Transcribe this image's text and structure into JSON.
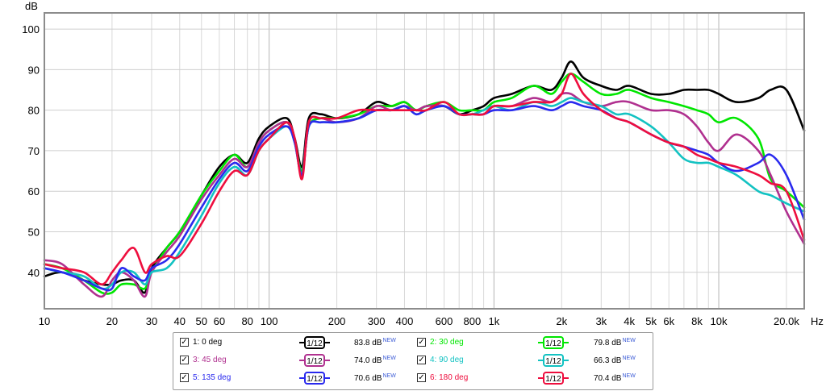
{
  "chart_data": {
    "type": "line",
    "title": "",
    "xlabel": "Hz",
    "ylabel": "dB",
    "x_scale": "log",
    "xlim": [
      10,
      24000
    ],
    "ylim": [
      31,
      104
    ],
    "grid": true,
    "x_ticks": [
      "10",
      "20",
      "30",
      "40",
      "50",
      "60",
      "80",
      "100",
      "200",
      "300",
      "400",
      "600",
      "800",
      "1k",
      "2k",
      "3k",
      "4k",
      "5k",
      "6k",
      "8k",
      "10k",
      "20.0k"
    ],
    "x_tick_values": [
      10,
      20,
      30,
      40,
      50,
      60,
      80,
      100,
      200,
      300,
      400,
      600,
      800,
      1000,
      2000,
      3000,
      4000,
      5000,
      6000,
      8000,
      10000,
      20000
    ],
    "y_ticks": [
      40,
      50,
      60,
      70,
      80,
      90,
      100
    ],
    "series": [
      {
        "name": "1: 0 deg",
        "color": "#000000",
        "smoothing": "1/12",
        "avg": "83.8 dB",
        "x": [
          10,
          12,
          15,
          18,
          20,
          22,
          25,
          28,
          30,
          35,
          40,
          50,
          60,
          70,
          80,
          90,
          100,
          120,
          130,
          140,
          150,
          170,
          200,
          250,
          300,
          350,
          400,
          450,
          500,
          600,
          700,
          800,
          900,
          1000,
          1200,
          1500,
          1800,
          2000,
          2200,
          2500,
          3000,
          3500,
          4000,
          5000,
          6000,
          7000,
          8000,
          9000,
          10000,
          12000,
          15000,
          17000,
          20000,
          24000
        ],
        "y": [
          39,
          40,
          38,
          37,
          37,
          38,
          38,
          35,
          41,
          46,
          50,
          59,
          66,
          69,
          67,
          73,
          76,
          78,
          73,
          66,
          78,
          79,
          78,
          79,
          82,
          81,
          82,
          80,
          81,
          81,
          79,
          80,
          81,
          83,
          84,
          86,
          85,
          88,
          92,
          88,
          86,
          85,
          86,
          84,
          84,
          85,
          85,
          85,
          84,
          82,
          83,
          85,
          85,
          75
        ]
      },
      {
        "name": "2: 30 deg",
        "color": "#00e600",
        "smoothing": "1/12",
        "avg": "79.8 dB",
        "x": [
          10,
          12,
          15,
          18,
          20,
          22,
          25,
          28,
          30,
          35,
          40,
          50,
          60,
          70,
          80,
          90,
          100,
          120,
          130,
          140,
          150,
          170,
          200,
          250,
          300,
          350,
          400,
          450,
          500,
          600,
          700,
          800,
          900,
          1000,
          1200,
          1500,
          1800,
          2000,
          2200,
          2500,
          3000,
          3500,
          4000,
          5000,
          6000,
          7000,
          8000,
          9000,
          10000,
          12000,
          15000,
          17000,
          20000,
          24000
        ],
        "y": [
          42,
          41,
          38,
          35,
          35,
          37,
          37,
          36,
          40,
          46,
          50,
          59,
          65,
          69,
          66,
          72,
          75,
          77,
          72,
          65,
          76,
          78,
          78,
          79,
          81,
          81,
          82,
          80,
          81,
          82,
          80,
          80,
          80,
          82,
          83,
          86,
          84,
          87,
          89,
          87,
          84,
          84,
          85,
          83,
          82,
          81,
          80,
          79,
          77,
          78,
          73,
          63,
          60,
          56
        ]
      },
      {
        "name": "3: 45 deg",
        "color": "#b0308f",
        "smoothing": "1/12",
        "avg": "74.0 dB",
        "x": [
          10,
          12,
          15,
          18,
          20,
          22,
          25,
          28,
          30,
          35,
          40,
          50,
          60,
          70,
          80,
          90,
          100,
          120,
          130,
          140,
          150,
          170,
          200,
          250,
          300,
          350,
          400,
          450,
          500,
          600,
          700,
          800,
          900,
          1000,
          1200,
          1500,
          1800,
          2000,
          2200,
          2500,
          3000,
          3500,
          4000,
          5000,
          6000,
          7000,
          8000,
          9000,
          10000,
          12000,
          15000,
          17000,
          20000,
          24000
        ],
        "y": [
          43,
          42,
          37,
          34,
          38,
          40,
          38,
          34,
          40,
          45,
          49,
          58,
          64,
          68,
          66,
          72,
          75,
          77,
          72,
          64,
          77,
          78,
          77,
          78,
          81,
          80,
          81,
          80,
          81,
          81,
          79,
          79,
          79,
          81,
          81,
          83,
          82,
          84,
          84,
          82,
          81,
          82,
          82,
          80,
          80,
          79,
          76,
          72,
          70,
          74,
          70,
          64,
          55,
          47
        ]
      },
      {
        "name": "4: 90 deg",
        "color": "#12c2c2",
        "smoothing": "1/12",
        "avg": "66.3 dB",
        "x": [
          10,
          12,
          15,
          18,
          20,
          22,
          25,
          28,
          30,
          35,
          40,
          50,
          60,
          70,
          80,
          90,
          100,
          120,
          130,
          140,
          150,
          170,
          200,
          250,
          300,
          350,
          400,
          450,
          500,
          600,
          700,
          800,
          900,
          1000,
          1200,
          1500,
          1800,
          2000,
          2200,
          2500,
          3000,
          3500,
          4000,
          5000,
          6000,
          7000,
          8000,
          9000,
          10000,
          12000,
          15000,
          17000,
          20000,
          24000
        ],
        "y": [
          41,
          40,
          39,
          36,
          37,
          40,
          40,
          37,
          40,
          41,
          45,
          54,
          62,
          66,
          64,
          70,
          73,
          76,
          72,
          64,
          76,
          77,
          77,
          78,
          80,
          80,
          81,
          79,
          80,
          81,
          79,
          79,
          80,
          81,
          80,
          82,
          81,
          82,
          83,
          82,
          81,
          79,
          79,
          76,
          72,
          68,
          67,
          67,
          66,
          64,
          60,
          59,
          57,
          55
        ]
      },
      {
        "name": "5: 135 deg",
        "color": "#2a2aee",
        "smoothing": "1/12",
        "avg": "70.6 dB",
        "x": [
          10,
          12,
          15,
          18,
          20,
          22,
          25,
          28,
          30,
          35,
          40,
          50,
          60,
          70,
          80,
          90,
          100,
          120,
          130,
          140,
          150,
          170,
          200,
          250,
          300,
          350,
          400,
          450,
          500,
          600,
          700,
          800,
          900,
          1000,
          1200,
          1500,
          1800,
          2000,
          2200,
          2500,
          3000,
          3500,
          4000,
          5000,
          6000,
          7000,
          8000,
          9000,
          10000,
          12000,
          15000,
          17000,
          20000,
          24000
        ],
        "y": [
          41,
          40,
          38,
          36,
          36,
          41,
          39,
          38,
          41,
          43,
          47,
          56,
          63,
          67,
          65,
          71,
          74,
          76,
          72,
          64,
          76,
          77,
          77,
          78,
          80,
          80,
          81,
          79,
          80,
          81,
          79,
          79,
          79,
          80,
          80,
          81,
          80,
          81,
          82,
          81,
          80,
          78,
          77,
          74,
          72,
          71,
          70,
          69,
          67,
          65,
          67,
          69,
          64,
          53
        ]
      },
      {
        "name": "6: 180 deg",
        "color": "#ee0e3e",
        "smoothing": "1/12",
        "avg": "70.4 dB",
        "x": [
          10,
          12,
          15,
          18,
          20,
          22,
          25,
          28,
          30,
          35,
          40,
          50,
          60,
          70,
          80,
          90,
          100,
          120,
          130,
          140,
          150,
          170,
          200,
          250,
          300,
          350,
          400,
          450,
          500,
          600,
          700,
          800,
          900,
          1000,
          1200,
          1500,
          1800,
          2000,
          2200,
          2500,
          3000,
          3500,
          4000,
          5000,
          6000,
          7000,
          8000,
          9000,
          10000,
          12000,
          15000,
          17000,
          20000,
          24000
        ],
        "y": [
          42,
          41,
          40,
          37,
          40,
          43,
          46,
          40,
          42,
          44,
          44,
          52,
          60,
          65,
          64,
          70,
          73,
          77,
          73,
          63,
          77,
          78,
          78,
          80,
          80,
          80,
          80,
          80,
          80,
          82,
          79,
          79,
          79,
          81,
          81,
          82,
          82,
          84,
          89,
          84,
          80,
          78,
          77,
          74,
          72,
          71,
          69,
          68,
          67,
          66,
          64,
          62,
          60,
          48
        ]
      }
    ]
  }
}
